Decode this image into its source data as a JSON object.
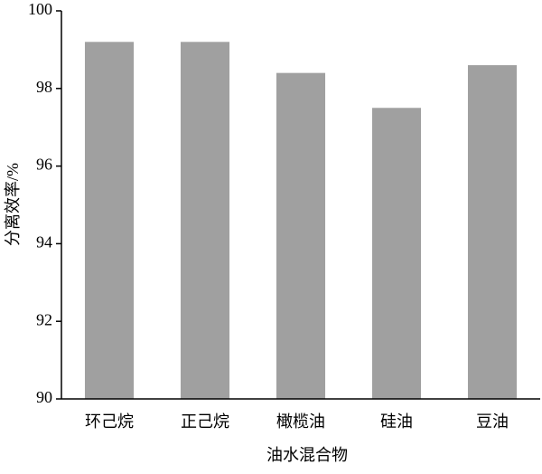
{
  "chart_data": {
    "type": "bar",
    "categories": [
      "环己烷",
      "正己烷",
      "橄榄油",
      "硅油",
      "豆油"
    ],
    "values": [
      99.2,
      99.2,
      98.4,
      97.5,
      98.6
    ],
    "color": "#a0a0a0",
    "ylim": [
      90,
      100
    ],
    "yticks": [
      90,
      92,
      94,
      96,
      98,
      100
    ],
    "x_label": "油水混合物",
    "y_label": "分离效率/%"
  }
}
